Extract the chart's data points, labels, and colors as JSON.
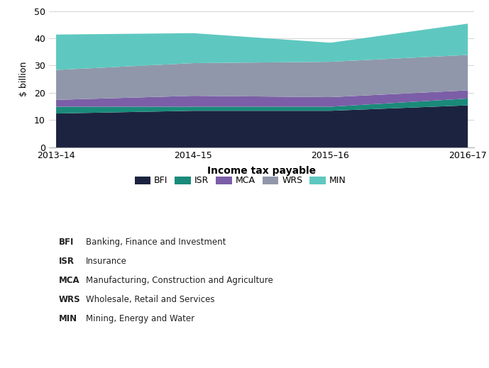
{
  "years": [
    "2013–14",
    "2014–15",
    "2015–16",
    "2016–17"
  ],
  "x": [
    0,
    1,
    2,
    3
  ],
  "segments": {
    "BFI": {
      "values": [
        12.5,
        13.5,
        13.5,
        15.5
      ],
      "color": "#1c2340",
      "label": "BFI"
    },
    "ISR": {
      "values": [
        2.5,
        1.5,
        1.5,
        2.5
      ],
      "color": "#1a8a7a",
      "label": "ISR"
    },
    "MCA": {
      "values": [
        2.5,
        4.0,
        3.5,
        3.0
      ],
      "color": "#7b5ea7",
      "label": "MCA"
    },
    "WRS": {
      "values": [
        11.0,
        12.0,
        13.0,
        13.0
      ],
      "color": "#9097aa",
      "label": "WRS"
    },
    "MIN": {
      "values": [
        13.0,
        11.0,
        7.0,
        11.5
      ],
      "color": "#5ec8c0",
      "label": "MIN"
    }
  },
  "segment_order": [
    "BFI",
    "ISR",
    "MCA",
    "WRS",
    "MIN"
  ],
  "ylabel": "$ billion",
  "xlabel": "Income tax payable",
  "ylim": [
    0,
    50
  ],
  "yticks": [
    0,
    10,
    20,
    30,
    40,
    50
  ],
  "legend_labels": {
    "BFI": "Banking, Finance and Investment",
    "ISR": "Insurance",
    "MCA": "Manufacturing, Construction and Agriculture",
    "WRS": "Wholesale, Retail and Services",
    "MIN": "Mining, Energy and Water"
  },
  "background_color": "#ffffff",
  "axis_fontsize": 9,
  "legend_fontsize": 9,
  "annotation_fontsize": 8.5,
  "xlabel_fontsize": 10
}
